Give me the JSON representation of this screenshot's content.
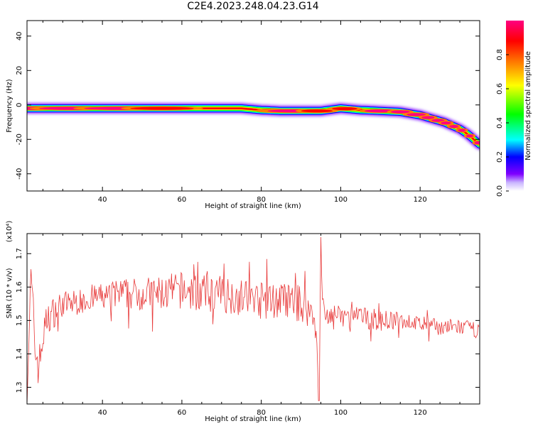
{
  "title": "C2E4.2023.248.04.23.G14",
  "chart_data": [
    {
      "type": "heatmap",
      "xlabel": "Height of straight line (km)",
      "ylabel": "Frequency (Hz)",
      "xlim": [
        21,
        135
      ],
      "ylim": [
        -50,
        49
      ],
      "xticks": [
        40,
        60,
        80,
        100,
        120
      ],
      "yticks": [
        -40,
        -20,
        0,
        20,
        40
      ],
      "grid": false,
      "ridge": {
        "height_km": [
          21,
          30,
          40,
          50,
          60,
          70,
          75,
          80,
          85,
          90,
          95,
          100,
          105,
          110,
          115,
          120,
          123,
          126,
          128,
          130,
          132,
          134,
          135
        ],
        "frequency_hz": [
          -2,
          -2,
          -2,
          -2,
          -2,
          -2,
          -2,
          -3,
          -3.5,
          -3.5,
          -3.5,
          -2,
          -3,
          -3.5,
          -4,
          -6,
          -8,
          -10,
          -12,
          -14,
          -17,
          -21,
          -23
        ]
      },
      "colorbar": {
        "label": "Normalized spectral amplitude",
        "range": [
          0.0,
          1.0
        ],
        "ticks": [
          0.0,
          0.2,
          0.4,
          0.6,
          0.8
        ],
        "colormap": [
          "#ffffff",
          "#c8b4ff",
          "#7f00ff",
          "#0000ff",
          "#00ffff",
          "#00ff00",
          "#ffff00",
          "#ff8000",
          "#ff0000",
          "#ff0080"
        ]
      }
    },
    {
      "type": "line",
      "xlabel": "Height of straight line (km)",
      "ylabel": "SNR (10 * v/v)",
      "y_multiplier": "(x10⁴)",
      "xlim": [
        21,
        135
      ],
      "ylim": [
        1.25,
        1.76
      ],
      "xticks": [
        40,
        60,
        80,
        100,
        120
      ],
      "yticks": [
        1.3,
        1.4,
        1.5,
        1.6,
        1.7
      ],
      "grid": false,
      "series": [
        {
          "color": "#e83a3a",
          "x": [
            21,
            22,
            23,
            24,
            25,
            26,
            28,
            30,
            32,
            35,
            38,
            40,
            45,
            50,
            55,
            60,
            65,
            70,
            75,
            80,
            85,
            90,
            93,
            94,
            94.5,
            95,
            95.5,
            96,
            98,
            100,
            105,
            110,
            115,
            120,
            125,
            130,
            135
          ],
          "y": [
            1.28,
            1.62,
            1.42,
            1.36,
            1.45,
            1.5,
            1.53,
            1.55,
            1.55,
            1.56,
            1.57,
            1.57,
            1.58,
            1.58,
            1.58,
            1.59,
            1.58,
            1.58,
            1.57,
            1.56,
            1.56,
            1.55,
            1.52,
            1.45,
            1.28,
            1.7,
            1.55,
            1.51,
            1.52,
            1.51,
            1.51,
            1.5,
            1.5,
            1.49,
            1.48,
            1.48,
            1.47
          ],
          "noise": [
            0.02,
            0.05,
            0.05,
            0.04,
            0.035,
            0.03,
            0.03,
            0.025,
            0.025,
            0.025,
            0.025,
            0.025,
            0.03,
            0.03,
            0.035,
            0.035,
            0.035,
            0.035,
            0.035,
            0.035,
            0.035,
            0.035,
            0.03,
            0.02,
            0.01,
            0.02,
            0.02,
            0.02,
            0.02,
            0.02,
            0.02,
            0.02,
            0.015,
            0.015,
            0.015,
            0.015,
            0.015
          ]
        }
      ]
    }
  ]
}
